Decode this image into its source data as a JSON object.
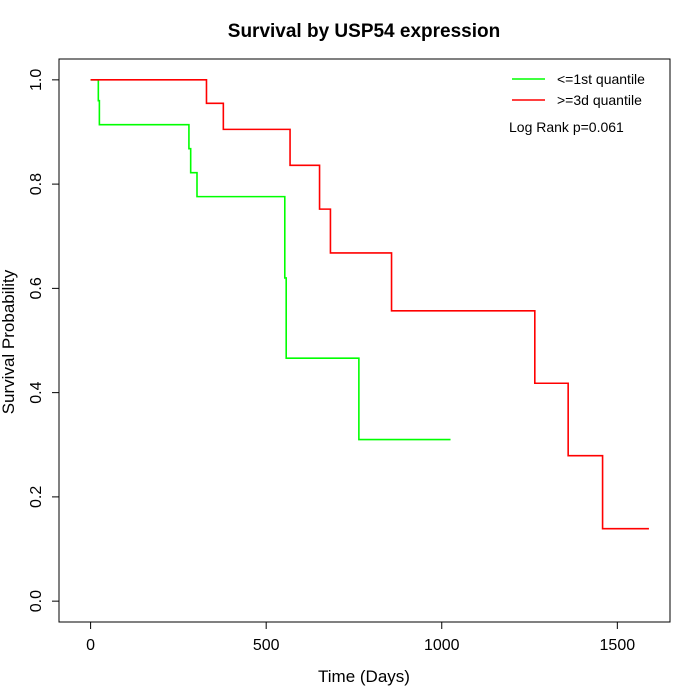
{
  "chart_data": {
    "type": "line",
    "title": "Survival by USP54 expression",
    "xlabel": "Time (Days)",
    "ylabel": "Survival Probability",
    "xlim": [
      -90,
      1650
    ],
    "ylim": [
      -0.04,
      1.04
    ],
    "x_ticks": [
      0,
      500,
      1000,
      1500
    ],
    "y_ticks": [
      0.0,
      0.2,
      0.4,
      0.6,
      0.8,
      1.0
    ],
    "x_tick_labels": [
      "0",
      "500",
      "1000",
      "1500"
    ],
    "y_tick_labels": [
      "0.0",
      "0.2",
      "0.4",
      "0.6",
      "0.8",
      "1.0"
    ],
    "grid": false,
    "legend_position": "top-right",
    "annotation": "Log Rank p=0.061",
    "series": [
      {
        "name": "<=1st quantile",
        "color": "#00ff00",
        "step": true,
        "points": [
          [
            0,
            1.0
          ],
          [
            22,
            1.0
          ],
          [
            22,
            0.96
          ],
          [
            25,
            0.96
          ],
          [
            25,
            0.914
          ],
          [
            280,
            0.914
          ],
          [
            280,
            0.868
          ],
          [
            285,
            0.868
          ],
          [
            285,
            0.822
          ],
          [
            303,
            0.822
          ],
          [
            303,
            0.776
          ],
          [
            553,
            0.776
          ],
          [
            553,
            0.62
          ],
          [
            557,
            0.62
          ],
          [
            557,
            0.466
          ],
          [
            764,
            0.466
          ],
          [
            764,
            0.31
          ],
          [
            1025,
            0.31
          ]
        ]
      },
      {
        "name": ">=3d quantile",
        "color": "#ff0000",
        "step": true,
        "points": [
          [
            0,
            1.0
          ],
          [
            330,
            1.0
          ],
          [
            330,
            0.955
          ],
          [
            378,
            0.955
          ],
          [
            378,
            0.905
          ],
          [
            568,
            0.905
          ],
          [
            568,
            0.836
          ],
          [
            652,
            0.836
          ],
          [
            652,
            0.752
          ],
          [
            683,
            0.752
          ],
          [
            683,
            0.668
          ],
          [
            857,
            0.668
          ],
          [
            857,
            0.557
          ],
          [
            1265,
            0.557
          ],
          [
            1265,
            0.418
          ],
          [
            1360,
            0.418
          ],
          [
            1360,
            0.279
          ],
          [
            1458,
            0.279
          ],
          [
            1458,
            0.139
          ],
          [
            1590,
            0.139
          ]
        ]
      }
    ]
  }
}
